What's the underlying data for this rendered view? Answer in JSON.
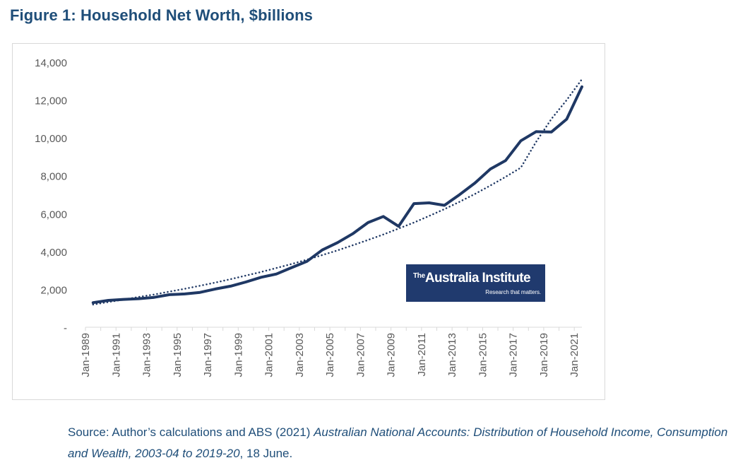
{
  "figure_title": "Figure 1: Household Net Worth, $billions",
  "source": {
    "prefix": "Source: Author’s calculations and ABS (2021) ",
    "italic": "Australian National Accounts: Distribution of Household Income, Consumption and Wealth, 2003-04 to 2019-20",
    "suffix": ", 18 June."
  },
  "logo": {
    "the": "The",
    "name": "Australia Institute",
    "tagline": "Research that matters."
  },
  "colors": {
    "series": "#1f3864",
    "trend": "#1f3864",
    "title": "#1f4e79",
    "axis_text": "#595959",
    "gridline": "#d9d9d9",
    "logo_bg": "#203a6e"
  },
  "chart_data": {
    "type": "line",
    "title": "",
    "xlabel": "",
    "ylabel": "",
    "ylim": [
      0,
      14000
    ],
    "y_ticks": [
      0,
      2000,
      4000,
      6000,
      8000,
      10000,
      12000,
      14000
    ],
    "y_tick_labels": [
      "-",
      "2,000",
      "4,000",
      "6,000",
      "8,000",
      "10,000",
      "12,000",
      "14,000"
    ],
    "x_range": [
      1989,
      2021.5
    ],
    "x_tick_labels": [
      "Jan-1989",
      "Jan-1991",
      "Jan-1993",
      "Jan-1995",
      "Jan-1997",
      "Jan-1999",
      "Jan-2001",
      "Jan-2003",
      "Jan-2005",
      "Jan-2007",
      "Jan-2009",
      "Jan-2011",
      "Jan-2013",
      "Jan-2015",
      "Jan-2017",
      "Jan-2019",
      "Jan-2021"
    ],
    "grid": false,
    "legend": "none",
    "series": [
      {
        "name": "Household Net Worth",
        "style": "solid",
        "x": [
          1989.5,
          1990.5,
          1991.5,
          1992.5,
          1993.5,
          1994.5,
          1995.5,
          1996.5,
          1997.5,
          1998.5,
          1999.5,
          2000.5,
          2001.5,
          2002.5,
          2003.5,
          2004.5,
          2005.5,
          2006.5,
          2007.5,
          2008.5,
          2009.5,
          2010.5,
          2011.5,
          2012.5,
          2013.5,
          2014.5,
          2015.5,
          2016.5,
          2017.5,
          2018.5,
          2019.5,
          2020.5,
          2021.5
        ],
        "values": [
          1300,
          1420,
          1470,
          1510,
          1580,
          1720,
          1760,
          1840,
          2020,
          2170,
          2390,
          2640,
          2810,
          3150,
          3480,
          4080,
          4470,
          4940,
          5530,
          5850,
          5330,
          6530,
          6570,
          6440,
          7010,
          7620,
          8350,
          8800,
          9850,
          10330,
          10310,
          10990,
          12700
        ]
      },
      {
        "name": "Trend",
        "style": "dotted",
        "x": [
          1989.5,
          1990.5,
          1991.5,
          1992.5,
          1993.5,
          1994.5,
          1995.5,
          1996.5,
          1997.5,
          1998.5,
          1999.5,
          2000.5,
          2001.5,
          2002.5,
          2003.5,
          2004.5,
          2005.5,
          2006.5,
          2007.5,
          2008.5,
          2009.5,
          2010.5,
          2011.5,
          2012.5,
          2013.5,
          2014.5,
          2015.5,
          2016.5,
          2017.5,
          2018.5,
          2019.5,
          2020.5,
          2021.5
        ],
        "values": [
          1200,
          1330,
          1460,
          1600,
          1730,
          1880,
          2030,
          2190,
          2360,
          2540,
          2730,
          2920,
          3130,
          3340,
          3570,
          3810,
          4060,
          4330,
          4610,
          4900,
          5210,
          5530,
          5880,
          6240,
          6630,
          7040,
          7480,
          7940,
          8430,
          9790,
          11000,
          12000,
          13100
        ]
      }
    ]
  }
}
